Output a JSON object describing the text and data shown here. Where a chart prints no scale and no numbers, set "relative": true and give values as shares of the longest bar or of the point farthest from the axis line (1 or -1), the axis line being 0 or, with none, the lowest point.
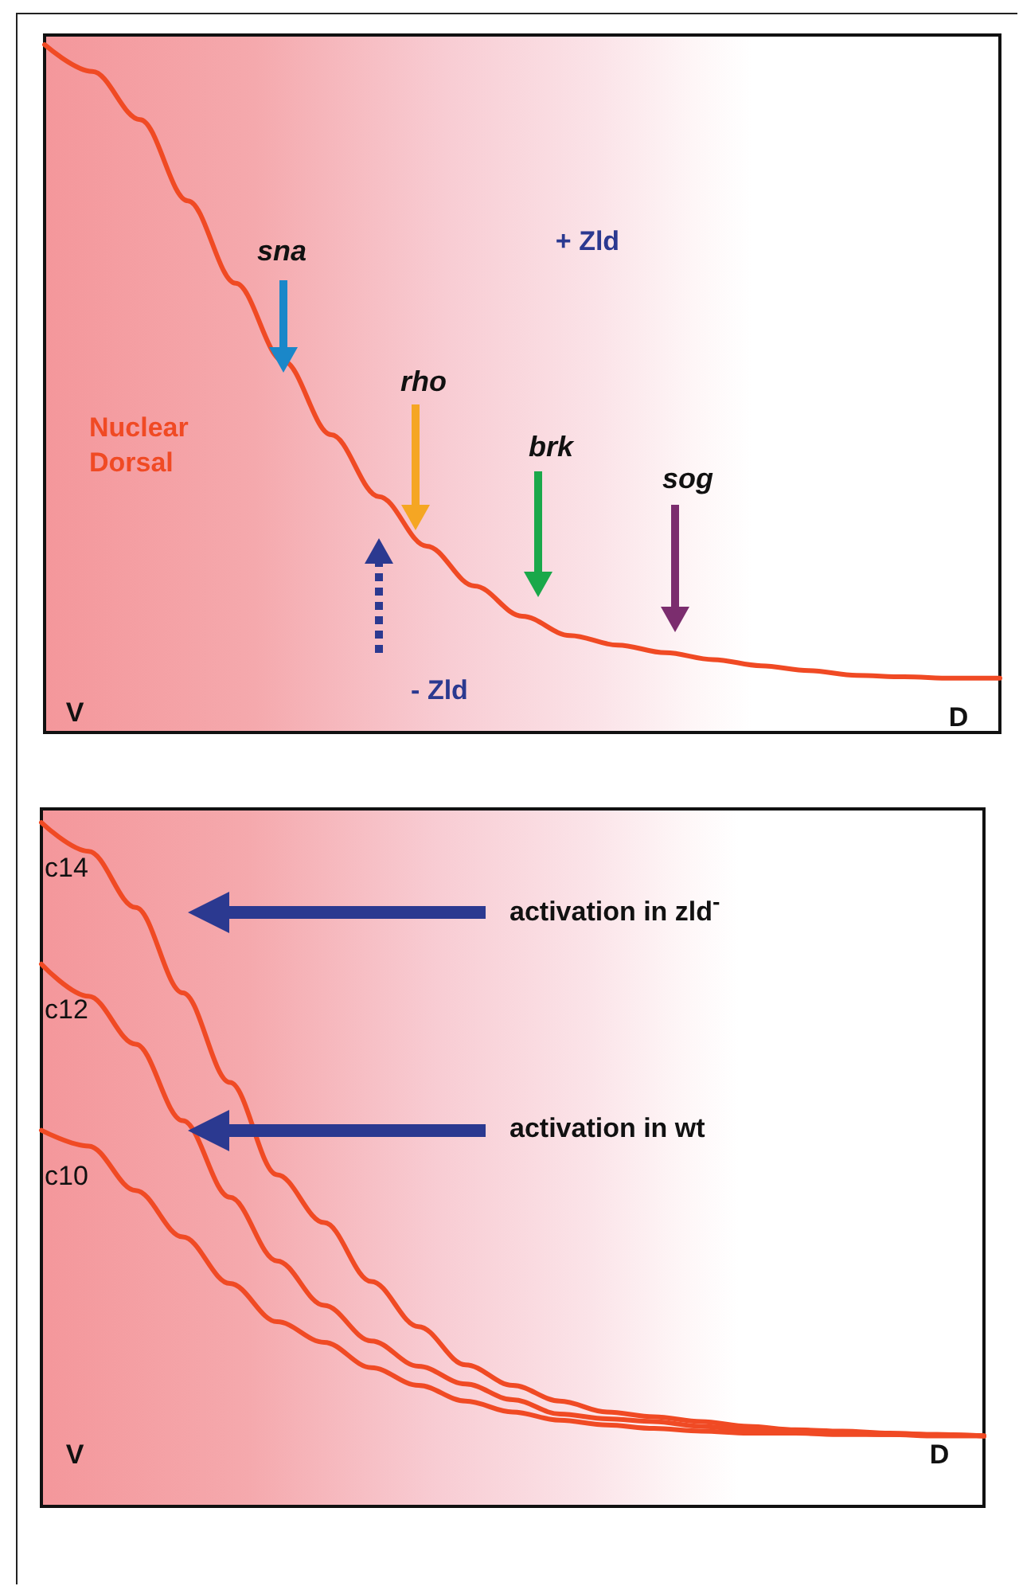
{
  "chart_data": [
    {
      "type": "line",
      "relative": true,
      "marker": "none",
      "line_style": "solid",
      "categories": [
        null,
        null,
        null,
        null,
        null,
        null,
        null,
        null,
        null,
        null,
        null,
        null,
        null,
        null,
        null,
        null,
        null,
        null,
        null,
        null,
        null
      ],
      "series": [
        {
          "name": "Nuclear Dorsal",
          "color": "#f04a24",
          "values": [
            1,
            0.961,
            0.891,
            0.773,
            0.653,
            0.54,
            0.433,
            0.343,
            0.271,
            0.213,
            0.169,
            0.141,
            0.127,
            0.116,
            0.106,
            0.097,
            0.09,
            0.083,
            0.081,
            0.079,
            0.079
          ]
        }
      ],
      "annotations": [
        "sna",
        "rho",
        "brk",
        "sog",
        "+ Zld",
        "- Zld",
        "V",
        "D"
      ]
    },
    {
      "type": "line",
      "relative": true,
      "marker": "none",
      "line_style": "solid",
      "categories": [
        null,
        null,
        null,
        null,
        null,
        null,
        null,
        null,
        null,
        null,
        null,
        null,
        null,
        null,
        null,
        null,
        null,
        null,
        null,
        null,
        null
      ],
      "series": [
        {
          "name": "c14",
          "color": "#f04a24",
          "values": [
            1,
            0.958,
            0.876,
            0.751,
            0.62,
            0.485,
            0.415,
            0.329,
            0.263,
            0.207,
            0.177,
            0.154,
            0.138,
            0.131,
            0.124,
            0.117,
            0.112,
            0.11,
            0.107,
            0.105,
            0.103
          ]
        },
        {
          "name": "c12",
          "color": "#f04a24",
          "values": [
            0.793,
            0.746,
            0.676,
            0.564,
            0.452,
            0.359,
            0.294,
            0.242,
            0.205,
            0.179,
            0.156,
            0.135,
            0.128,
            0.124,
            0.117,
            0.112,
            0.11,
            0.107,
            0.105,
            0.105,
            0.103
          ]
        },
        {
          "name": "c10",
          "color": "#f04a24",
          "values": [
            0.55,
            0.527,
            0.462,
            0.394,
            0.326,
            0.27,
            0.24,
            0.203,
            0.177,
            0.154,
            0.138,
            0.126,
            0.119,
            0.114,
            0.11,
            0.107,
            0.107,
            0.105,
            0.105,
            0.103,
            0.103
          ]
        }
      ],
      "annotations": [
        "activation in zld$^{-}$",
        "activation in wt",
        "V",
        "D"
      ]
    }
  ]
}
